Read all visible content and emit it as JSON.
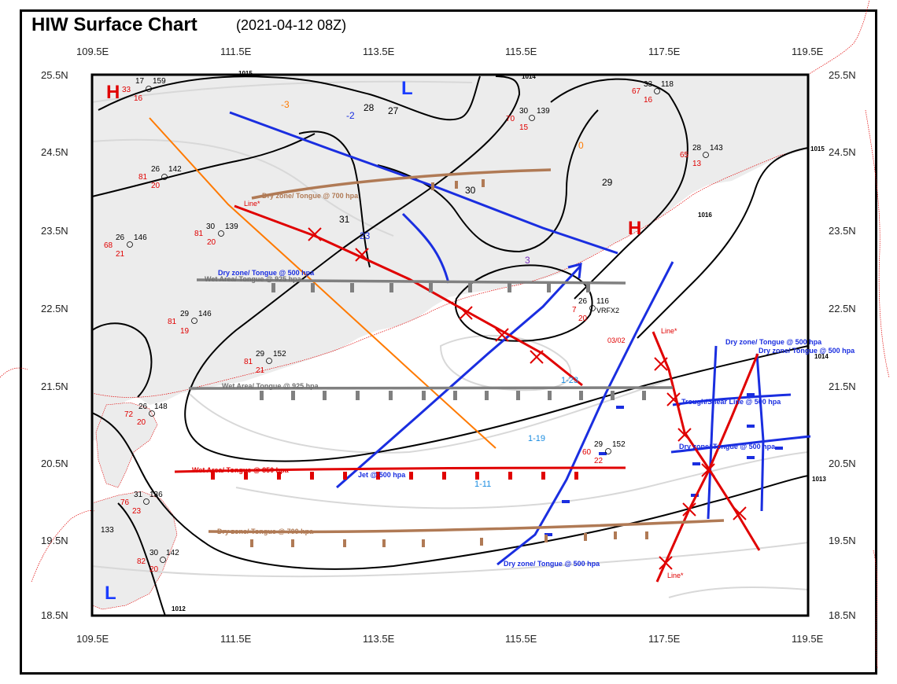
{
  "title": "HIW Surface Chart",
  "subtitle": "(2021-04-12 08Z)",
  "lon_labels": [
    "109.5E",
    "111.5E",
    "113.5E",
    "115.5E",
    "117.5E",
    "119.5E"
  ],
  "lat_labels": [
    "25.5N",
    "24.5N",
    "23.5N",
    "22.5N",
    "21.5N",
    "20.5N",
    "19.5N",
    "18.5N"
  ],
  "isobars": [
    "1015",
    "1014",
    "1016",
    "1015",
    "1014",
    "1013",
    "1012"
  ],
  "pressure_centers": [
    {
      "type": "H",
      "color": "#e00000"
    },
    {
      "type": "L",
      "color": "#1a3cff"
    },
    {
      "type": "H",
      "color": "#e00000"
    },
    {
      "type": "L",
      "color": "#1a3cff"
    }
  ],
  "front_labels": {
    "dry_700": "Dry zone/ Tongue @ 700 hpa",
    "dry_500_left": "Dry zone/ Tongue @ 500 hpa",
    "wet_925_upper": "Wet Area/ Tongue @ 925 hpa",
    "wet_925_lower": "Wet Area/ Tongue @ 925 hpa",
    "wet_850": "Wet Area/ Tongue @ 850 hpa",
    "jet_500": "Jet @ 500 hpa",
    "dry_700_bottom": "Dry zone/ Tongue @ 700 hpa",
    "dry_500_bottom": "Dry zone/ Tongue @ 500 hpa",
    "dry_500_right1": "Dry zone/ Tongue @ 500 hpa",
    "dry_500_right2": "Dry zone/ Tongue @ 500 hpa",
    "trough_500": "Trough/Shear Line @ 500 hpa",
    "dry_500_right3": "Dry zone/ Tongue @ 500 hpa",
    "line_a": "Line*",
    "line_b": "Line*",
    "line_c": "Line*"
  },
  "station_obs": [
    {
      "t": "17",
      "p": "159",
      "td": "33",
      "ext": "16",
      "c": "#000"
    },
    {
      "t": "33",
      "p": "118",
      "td": "67",
      "ext": "16",
      "c": "#000"
    },
    {
      "t": "30",
      "p": "139",
      "td": "70",
      "ext": "15",
      "c": "#000"
    },
    {
      "t": "28",
      "p": "143",
      "td": "65",
      "ext": "13",
      "c": "#000"
    },
    {
      "t": "26",
      "p": "142",
      "td": "81",
      "ext": "20",
      "c": "#000"
    },
    {
      "t": "30",
      "p": "139",
      "td": "81",
      "ext": "20",
      "c": "#000"
    },
    {
      "t": "26",
      "p": "146",
      "td": "68",
      "ext": "21",
      "c": "#000"
    },
    {
      "t": "29",
      "p": "146",
      "td": "81",
      "ext": "19",
      "c": "#000"
    },
    {
      "t": "29",
      "p": "152",
      "td": "81",
      "ext": "21",
      "c": "#000"
    },
    {
      "t": "26",
      "p": "148",
      "td": "72",
      "ext": "20",
      "c": "#000"
    },
    {
      "t": "31",
      "p": "136",
      "td": "76",
      "ext": "23",
      "c": "#000"
    },
    {
      "t": "30",
      "p": "142",
      "td": "82",
      "ext": "20",
      "c": "#000"
    },
    {
      "t": "29",
      "p": "152",
      "td": "60",
      "ext": "22",
      "c": "#000"
    },
    {
      "t": "26",
      "p": "116",
      "td": "7",
      "ext": "20",
      "c": "#000"
    }
  ],
  "misc_labels": [
    "28",
    "30",
    "29",
    "31",
    "27",
    "-2",
    "-3",
    "0",
    "3",
    "23",
    "VRFX2",
    "03/02",
    "1-19",
    "1-11",
    "1-23",
    "133"
  ]
}
